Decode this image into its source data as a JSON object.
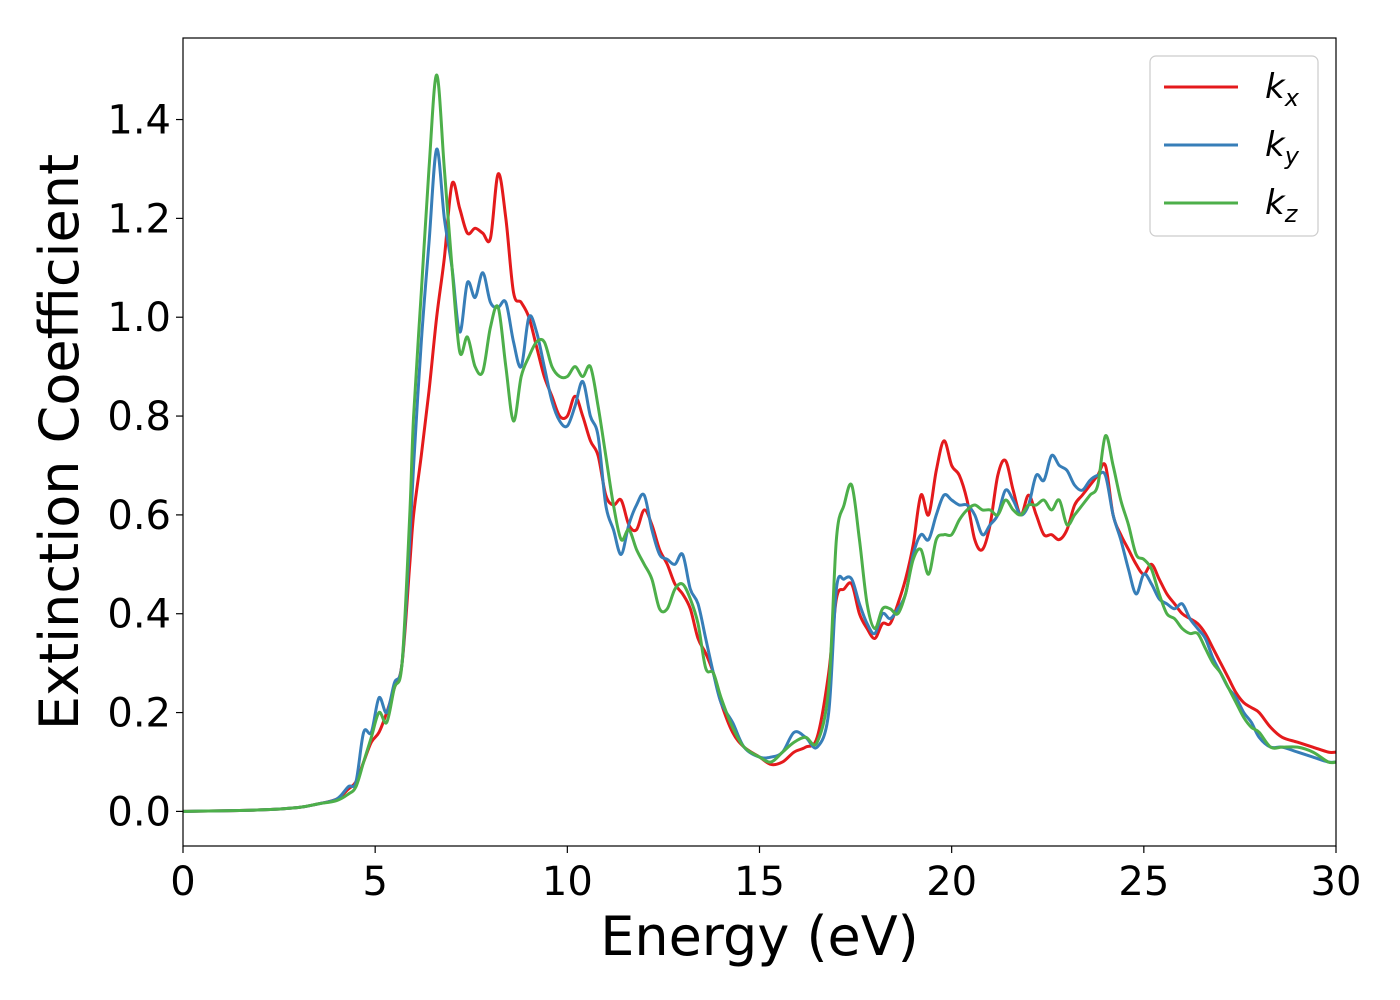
{
  "chart_data": {
    "type": "line",
    "title": "",
    "xlabel": "Energy (eV)",
    "ylabel": "Extinction Coefficient",
    "xlim": [
      0,
      30
    ],
    "ylim": [
      -0.07,
      1.565
    ],
    "xticks": [
      0,
      5,
      10,
      15,
      20,
      25,
      30
    ],
    "xtick_labels": [
      "0",
      "5",
      "10",
      "15",
      "20",
      "25",
      "30"
    ],
    "yticks": [
      0.0,
      0.2,
      0.4,
      0.6,
      0.8,
      1.0,
      1.2,
      1.4
    ],
    "ytick_labels": [
      "0.0",
      "0.2",
      "0.4",
      "0.6",
      "0.8",
      "1.0",
      "1.2",
      "1.4"
    ],
    "grid": false,
    "legend_position": "top-right",
    "series": [
      {
        "name": "k",
        "subscript": "x",
        "color": "#e41a1c",
        "x": [
          0,
          2,
          3,
          3.5,
          4.0,
          4.3,
          4.5,
          4.7,
          4.9,
          5.1,
          5.3,
          5.5,
          5.7,
          5.9,
          6.0,
          6.2,
          6.4,
          6.6,
          6.8,
          7.0,
          7.2,
          7.4,
          7.6,
          7.8,
          8.0,
          8.2,
          8.4,
          8.6,
          8.8,
          9.0,
          9.2,
          9.4,
          9.6,
          9.8,
          10.0,
          10.2,
          10.4,
          10.6,
          10.8,
          11.0,
          11.2,
          11.4,
          11.6,
          11.8,
          12.0,
          12.2,
          12.4,
          12.6,
          12.8,
          13.0,
          13.2,
          13.4,
          13.6,
          13.8,
          14.0,
          14.3,
          14.6,
          15.0,
          15.3,
          15.6,
          15.9,
          16.2,
          16.5,
          16.8,
          17.0,
          17.2,
          17.4,
          17.6,
          17.8,
          18.0,
          18.2,
          18.4,
          18.6,
          18.8,
          19.0,
          19.2,
          19.4,
          19.6,
          19.8,
          20.0,
          20.2,
          20.4,
          20.6,
          20.8,
          21.0,
          21.2,
          21.4,
          21.6,
          21.8,
          22.0,
          22.2,
          22.4,
          22.6,
          22.8,
          23.0,
          23.2,
          23.4,
          23.6,
          23.8,
          24.0,
          24.2,
          24.4,
          24.6,
          24.8,
          25.0,
          25.2,
          25.4,
          25.6,
          25.8,
          26.0,
          26.2,
          26.4,
          26.6,
          26.8,
          27.0,
          27.2,
          27.4,
          27.6,
          27.8,
          28.0,
          28.3,
          28.6,
          29.0,
          29.4,
          29.8,
          30.0
        ],
        "y": [
          0.0,
          0.003,
          0.008,
          0.015,
          0.025,
          0.045,
          0.06,
          0.1,
          0.14,
          0.16,
          0.2,
          0.25,
          0.3,
          0.5,
          0.6,
          0.72,
          0.85,
          1.0,
          1.12,
          1.27,
          1.22,
          1.17,
          1.18,
          1.17,
          1.16,
          1.29,
          1.2,
          1.05,
          1.03,
          1.0,
          0.94,
          0.88,
          0.84,
          0.8,
          0.8,
          0.84,
          0.8,
          0.75,
          0.72,
          0.64,
          0.62,
          0.63,
          0.58,
          0.57,
          0.61,
          0.58,
          0.53,
          0.5,
          0.46,
          0.44,
          0.41,
          0.35,
          0.32,
          0.28,
          0.22,
          0.16,
          0.13,
          0.11,
          0.095,
          0.1,
          0.12,
          0.13,
          0.15,
          0.28,
          0.43,
          0.45,
          0.46,
          0.4,
          0.37,
          0.35,
          0.38,
          0.38,
          0.42,
          0.47,
          0.54,
          0.64,
          0.6,
          0.69,
          0.75,
          0.7,
          0.68,
          0.63,
          0.55,
          0.53,
          0.58,
          0.68,
          0.71,
          0.65,
          0.6,
          0.64,
          0.6,
          0.56,
          0.56,
          0.55,
          0.57,
          0.62,
          0.64,
          0.66,
          0.68,
          0.7,
          0.6,
          0.56,
          0.53,
          0.5,
          0.48,
          0.5,
          0.47,
          0.44,
          0.42,
          0.4,
          0.39,
          0.38,
          0.36,
          0.33,
          0.3,
          0.27,
          0.24,
          0.22,
          0.21,
          0.2,
          0.17,
          0.15,
          0.14,
          0.13,
          0.12,
          0.12
        ]
      },
      {
        "name": "k",
        "subscript": "y",
        "color": "#377eb8",
        "x": [
          0,
          2,
          3,
          3.5,
          4.0,
          4.3,
          4.5,
          4.7,
          4.9,
          5.1,
          5.3,
          5.5,
          5.7,
          5.9,
          6.0,
          6.2,
          6.4,
          6.6,
          6.8,
          7.0,
          7.2,
          7.4,
          7.6,
          7.8,
          8.0,
          8.2,
          8.4,
          8.6,
          8.8,
          9.0,
          9.2,
          9.4,
          9.6,
          9.8,
          10.0,
          10.2,
          10.4,
          10.6,
          10.8,
          11.0,
          11.2,
          11.4,
          11.6,
          11.8,
          12.0,
          12.2,
          12.4,
          12.6,
          12.8,
          13.0,
          13.2,
          13.4,
          13.6,
          13.8,
          14.0,
          14.3,
          14.6,
          15.0,
          15.3,
          15.6,
          15.9,
          16.2,
          16.5,
          16.8,
          17.0,
          17.2,
          17.4,
          17.6,
          17.8,
          18.0,
          18.2,
          18.4,
          18.6,
          18.8,
          19.0,
          19.2,
          19.4,
          19.6,
          19.8,
          20.0,
          20.2,
          20.4,
          20.6,
          20.8,
          21.0,
          21.2,
          21.4,
          21.6,
          21.8,
          22.0,
          22.2,
          22.4,
          22.6,
          22.8,
          23.0,
          23.2,
          23.4,
          23.6,
          23.8,
          24.0,
          24.2,
          24.4,
          24.6,
          24.8,
          25.0,
          25.2,
          25.4,
          25.6,
          25.8,
          26.0,
          26.2,
          26.4,
          26.6,
          26.8,
          27.0,
          27.2,
          27.4,
          27.6,
          27.8,
          28.0,
          28.3,
          28.6,
          29.0,
          29.4,
          29.8,
          30.0
        ],
        "y": [
          0.0,
          0.003,
          0.008,
          0.015,
          0.025,
          0.05,
          0.06,
          0.16,
          0.16,
          0.23,
          0.2,
          0.26,
          0.3,
          0.55,
          0.7,
          0.95,
          1.15,
          1.34,
          1.2,
          1.1,
          0.97,
          1.07,
          1.04,
          1.09,
          1.03,
          1.02,
          1.03,
          0.95,
          0.9,
          1.0,
          0.97,
          0.9,
          0.83,
          0.79,
          0.78,
          0.82,
          0.87,
          0.8,
          0.76,
          0.62,
          0.57,
          0.52,
          0.58,
          0.62,
          0.64,
          0.57,
          0.52,
          0.51,
          0.5,
          0.52,
          0.45,
          0.42,
          0.35,
          0.28,
          0.22,
          0.18,
          0.13,
          0.11,
          0.11,
          0.12,
          0.16,
          0.15,
          0.13,
          0.2,
          0.45,
          0.47,
          0.47,
          0.42,
          0.38,
          0.36,
          0.4,
          0.39,
          0.41,
          0.44,
          0.52,
          0.56,
          0.55,
          0.6,
          0.64,
          0.63,
          0.62,
          0.62,
          0.6,
          0.56,
          0.58,
          0.6,
          0.65,
          0.63,
          0.6,
          0.62,
          0.68,
          0.67,
          0.72,
          0.7,
          0.69,
          0.66,
          0.65,
          0.67,
          0.68,
          0.68,
          0.6,
          0.55,
          0.49,
          0.44,
          0.48,
          0.46,
          0.43,
          0.42,
          0.41,
          0.42,
          0.39,
          0.37,
          0.35,
          0.31,
          0.28,
          0.25,
          0.23,
          0.2,
          0.18,
          0.15,
          0.13,
          0.13,
          0.12,
          0.11,
          0.1,
          0.1
        ]
      },
      {
        "name": "k",
        "subscript": "z",
        "color": "#4daf4a",
        "x": [
          0,
          2,
          3,
          3.5,
          4.0,
          4.3,
          4.5,
          4.7,
          4.9,
          5.1,
          5.3,
          5.5,
          5.7,
          5.9,
          6.0,
          6.2,
          6.4,
          6.6,
          6.8,
          7.0,
          7.2,
          7.4,
          7.6,
          7.8,
          8.0,
          8.2,
          8.4,
          8.6,
          8.8,
          9.0,
          9.2,
          9.4,
          9.6,
          9.8,
          10.0,
          10.2,
          10.4,
          10.6,
          10.8,
          11.0,
          11.2,
          11.4,
          11.6,
          11.8,
          12.0,
          12.2,
          12.4,
          12.6,
          12.8,
          13.0,
          13.2,
          13.4,
          13.6,
          13.8,
          14.0,
          14.3,
          14.6,
          15.0,
          15.3,
          15.6,
          15.9,
          16.2,
          16.5,
          16.8,
          17.0,
          17.2,
          17.4,
          17.6,
          17.8,
          18.0,
          18.2,
          18.4,
          18.6,
          18.8,
          19.0,
          19.2,
          19.4,
          19.6,
          19.8,
          20.0,
          20.2,
          20.4,
          20.6,
          20.8,
          21.0,
          21.2,
          21.4,
          21.6,
          21.8,
          22.0,
          22.2,
          22.4,
          22.6,
          22.8,
          23.0,
          23.2,
          23.4,
          23.6,
          23.8,
          24.0,
          24.2,
          24.4,
          24.6,
          24.8,
          25.0,
          25.2,
          25.4,
          25.6,
          25.8,
          26.0,
          26.2,
          26.4,
          26.6,
          26.8,
          27.0,
          27.2,
          27.4,
          27.6,
          27.8,
          28.0,
          28.3,
          28.6,
          29.0,
          29.4,
          29.8,
          30.0
        ],
        "y": [
          0.0,
          0.003,
          0.008,
          0.015,
          0.022,
          0.035,
          0.05,
          0.1,
          0.15,
          0.2,
          0.18,
          0.25,
          0.3,
          0.6,
          0.8,
          1.05,
          1.3,
          1.49,
          1.3,
          1.1,
          0.93,
          0.96,
          0.9,
          0.89,
          0.98,
          1.02,
          0.9,
          0.79,
          0.88,
          0.92,
          0.95,
          0.95,
          0.9,
          0.88,
          0.88,
          0.9,
          0.88,
          0.9,
          0.82,
          0.72,
          0.62,
          0.55,
          0.57,
          0.53,
          0.5,
          0.47,
          0.41,
          0.41,
          0.45,
          0.46,
          0.43,
          0.38,
          0.29,
          0.28,
          0.23,
          0.17,
          0.13,
          0.11,
          0.1,
          0.12,
          0.14,
          0.15,
          0.14,
          0.25,
          0.55,
          0.62,
          0.66,
          0.55,
          0.42,
          0.37,
          0.41,
          0.41,
          0.4,
          0.44,
          0.51,
          0.53,
          0.48,
          0.55,
          0.56,
          0.56,
          0.59,
          0.61,
          0.62,
          0.61,
          0.61,
          0.6,
          0.63,
          0.61,
          0.6,
          0.62,
          0.62,
          0.63,
          0.61,
          0.63,
          0.58,
          0.6,
          0.62,
          0.64,
          0.66,
          0.76,
          0.7,
          0.63,
          0.58,
          0.52,
          0.51,
          0.49,
          0.44,
          0.4,
          0.39,
          0.37,
          0.36,
          0.36,
          0.33,
          0.3,
          0.28,
          0.25,
          0.22,
          0.19,
          0.17,
          0.16,
          0.13,
          0.13,
          0.13,
          0.12,
          0.1,
          0.1
        ]
      }
    ]
  }
}
